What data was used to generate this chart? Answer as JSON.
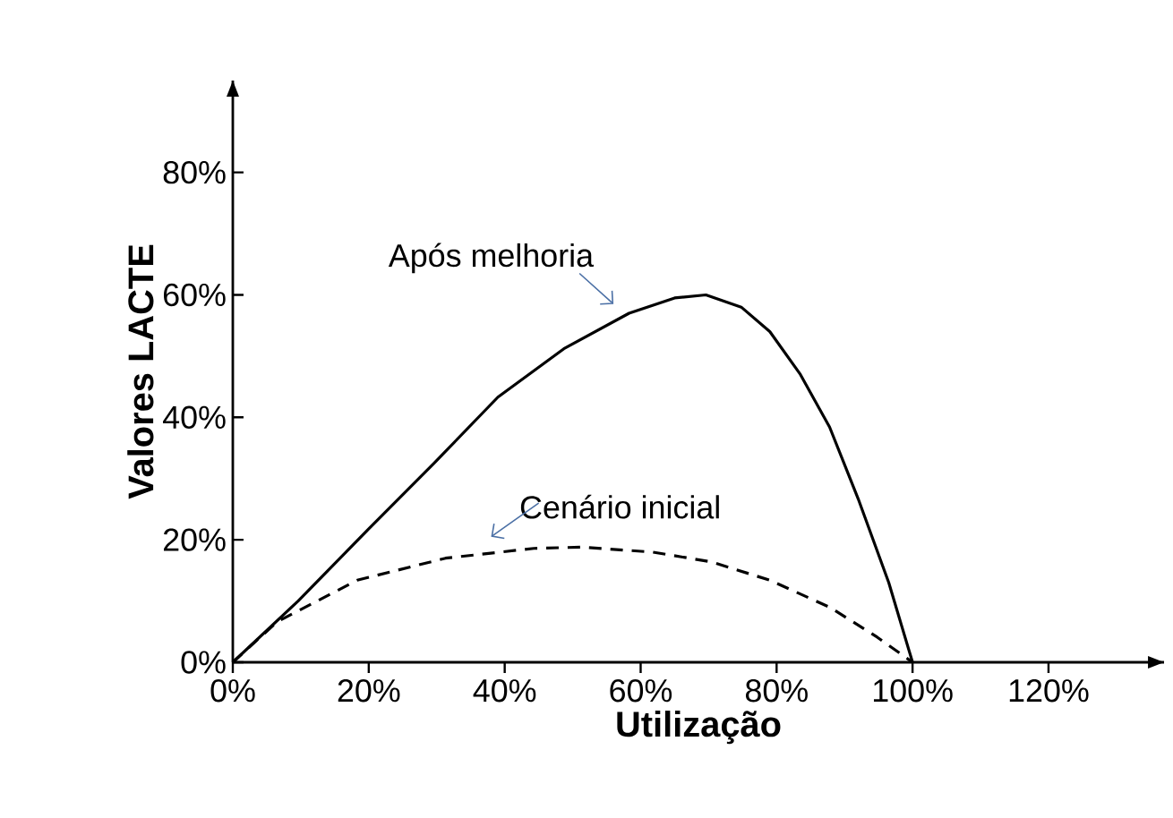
{
  "chart_data": {
    "type": "line",
    "xlabel": "Utilização",
    "ylabel": "Valores LACTE",
    "xlim": [
      0,
      137
    ],
    "ylim": [
      0,
      95
    ],
    "xticks": [
      {
        "value": 0,
        "label": "0%"
      },
      {
        "value": 20,
        "label": "20%"
      },
      {
        "value": 40,
        "label": "40%"
      },
      {
        "value": 60,
        "label": "60%"
      },
      {
        "value": 80,
        "label": "80%"
      },
      {
        "value": 100,
        "label": "100%"
      },
      {
        "value": 120,
        "label": "120%"
      }
    ],
    "yticks": [
      {
        "value": 0,
        "label": "0%"
      },
      {
        "value": 20,
        "label": "20%"
      },
      {
        "value": 40,
        "label": "40%"
      },
      {
        "value": 60,
        "label": "60%"
      },
      {
        "value": 80,
        "label": "80%"
      }
    ],
    "marker": "none",
    "series": [
      {
        "name": "Após melhoria",
        "color": "#000000",
        "line_style": "solid",
        "x": [
          0,
          9.6,
          20,
          29.6,
          39,
          48.7,
          58.3,
          65,
          69.6,
          74.8,
          79,
          83.5,
          87.8,
          92,
          96.5,
          100
        ],
        "values": [
          0,
          10,
          21.8,
          32.5,
          43.3,
          51.2,
          57,
          59.5,
          60,
          58,
          54,
          47,
          38.4,
          26.7,
          13,
          0
        ]
      },
      {
        "name": "Cenário inicial",
        "color": "#000000",
        "line_style": "dashed",
        "x": [
          0,
          6.5,
          18.3,
          31.3,
          44.3,
          51.3,
          61.7,
          70.4,
          79,
          87.8,
          94.8,
          100
        ],
        "values": [
          0,
          6.6,
          13.4,
          17,
          18.6,
          18.8,
          18,
          16.4,
          13.4,
          9,
          4.1,
          0
        ]
      }
    ]
  }
}
